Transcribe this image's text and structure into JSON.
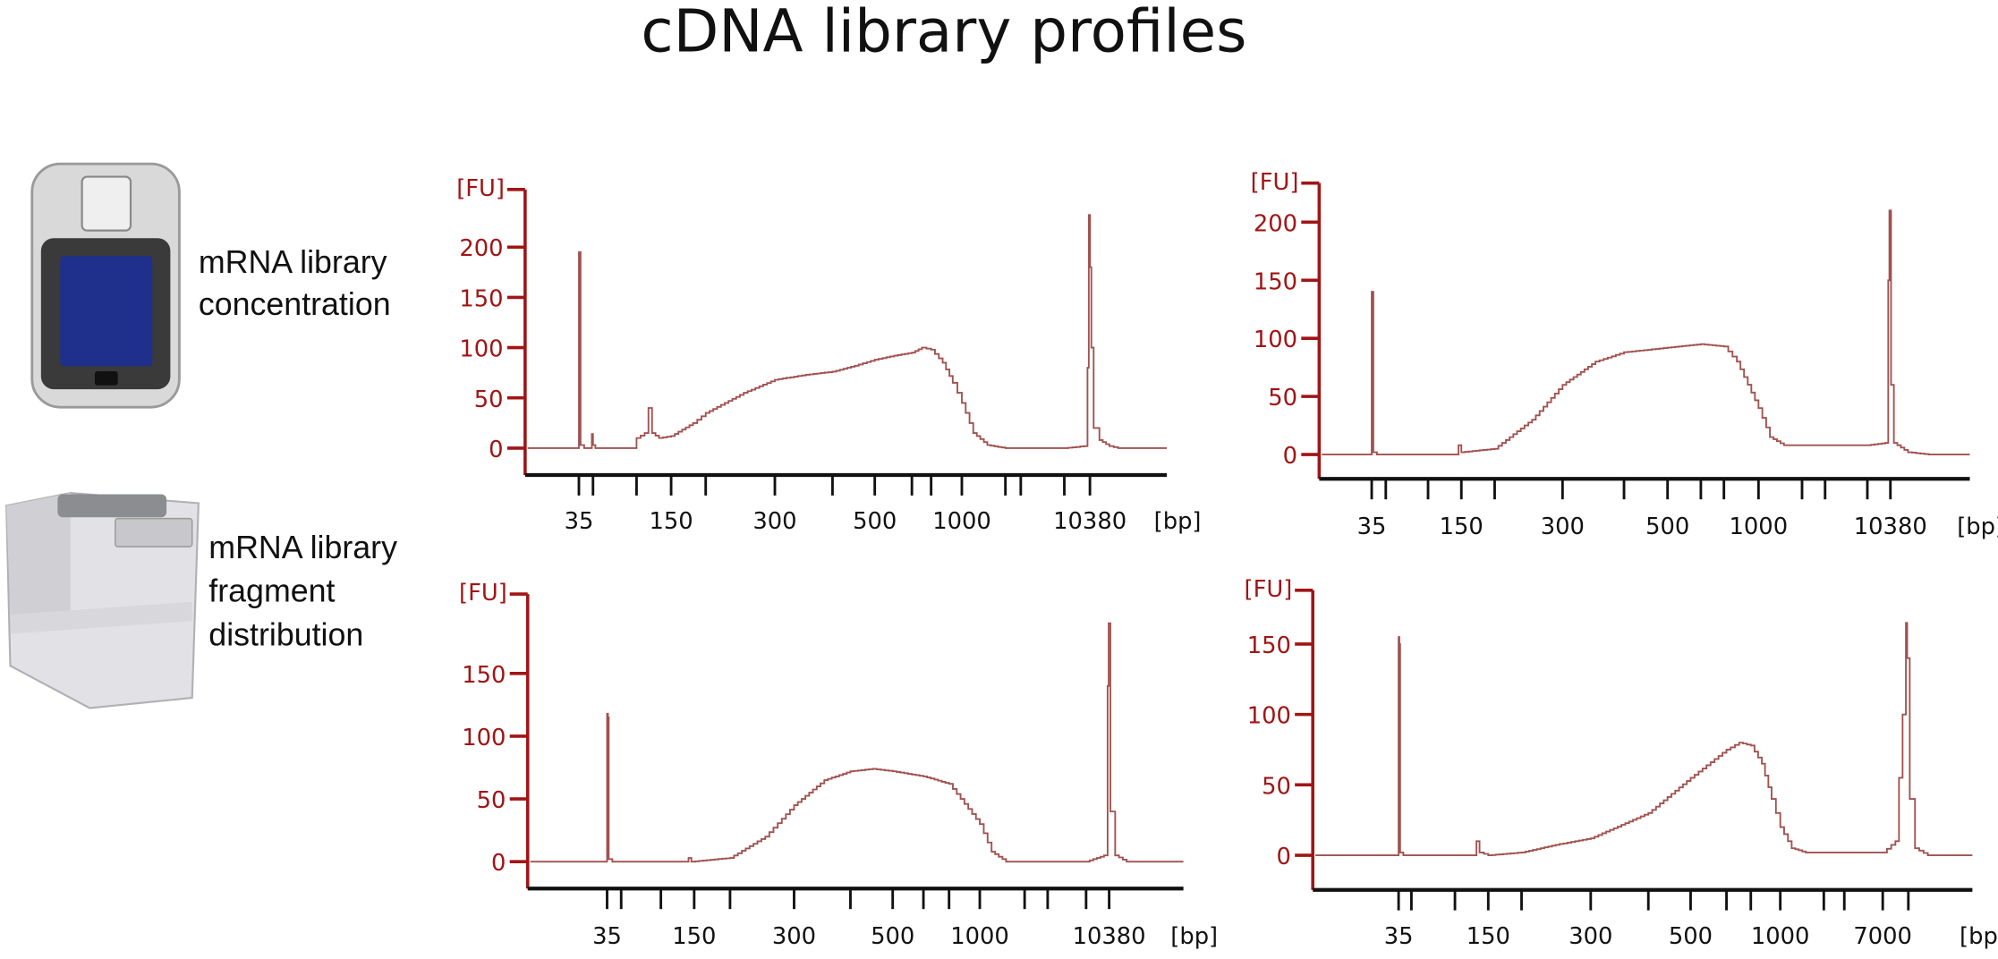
{
  "title": "cDNA library profiles",
  "labels": {
    "concentration": [
      "mRNA library",
      "concentration"
    ],
    "fragment": [
      "mRNA library",
      "fragment",
      "distribution"
    ]
  },
  "colors": {
    "axis_y": "#a01515",
    "axis_x": "#111111",
    "trace": "#a0524f",
    "device_screen": "#1e2f8c"
  },
  "icons": [
    "fluorometer-device-icon",
    "bioanalyzer-instrument-icon"
  ],
  "chart_data": [
    {
      "type": "line",
      "ylabel": "[FU]",
      "xlabel": "[bp]",
      "yticks": [
        0,
        50,
        100,
        150,
        200
      ],
      "ylim": [
        0,
        240
      ],
      "ladder_bp": [
        35,
        50,
        100,
        150,
        200,
        300,
        400,
        500,
        600,
        700,
        1000,
        2000,
        3000,
        7000,
        10380
      ],
      "xtick_labels": [
        "35",
        "150",
        "300",
        "500",
        "1000",
        "10380"
      ],
      "series": [
        {
          "points": [
            [
              34,
              0
            ],
            [
              35,
              195
            ],
            [
              35.8,
              195
            ],
            [
              36.5,
              3
            ],
            [
              40,
              0
            ],
            [
              47,
              0
            ],
            [
              48.5,
              14
            ],
            [
              50,
              3
            ],
            [
              52,
              0
            ],
            [
              95,
              0
            ],
            [
              100,
              10
            ],
            [
              110,
              15
            ],
            [
              115,
              40
            ],
            [
              120,
              15
            ],
            [
              130,
              10
            ],
            [
              150,
              12
            ],
            [
              180,
              25
            ],
            [
              200,
              35
            ],
            [
              250,
              55
            ],
            [
              300,
              68
            ],
            [
              350,
              73
            ],
            [
              400,
              76
            ],
            [
              450,
              82
            ],
            [
              500,
              88
            ],
            [
              550,
              92
            ],
            [
              600,
              95
            ],
            [
              650,
              100
            ],
            [
              700,
              98
            ],
            [
              800,
              85
            ],
            [
              900,
              65
            ],
            [
              1000,
              45
            ],
            [
              1200,
              15
            ],
            [
              1500,
              3
            ],
            [
              2000,
              0
            ],
            [
              7000,
              0
            ],
            [
              9500,
              2
            ],
            [
              10000,
              80
            ],
            [
              10200,
              232
            ],
            [
              10400,
              180
            ],
            [
              10600,
              100
            ],
            [
              11000,
              20
            ],
            [
              12000,
              8
            ],
            [
              14000,
              2
            ],
            [
              16000,
              0
            ]
          ]
        }
      ]
    },
    {
      "type": "line",
      "ylabel": "[FU]",
      "xlabel": "[bp]",
      "yticks": [
        0,
        50,
        100,
        150,
        200
      ],
      "ylim": [
        0,
        230
      ],
      "ladder_bp": [
        35,
        50,
        100,
        150,
        200,
        300,
        400,
        500,
        600,
        700,
        1000,
        2000,
        3000,
        7000,
        10380
      ],
      "xtick_labels": [
        "35",
        "150",
        "300",
        "500",
        "1000",
        "10380"
      ],
      "series": [
        {
          "points": [
            [
              34,
              0
            ],
            [
              35,
              140
            ],
            [
              35.8,
              140
            ],
            [
              36.5,
              2
            ],
            [
              40,
              0
            ],
            [
              140,
              0
            ],
            [
              145,
              8
            ],
            [
              150,
              2
            ],
            [
              200,
              5
            ],
            [
              250,
              30
            ],
            [
              300,
              60
            ],
            [
              350,
              80
            ],
            [
              400,
              88
            ],
            [
              500,
              92
            ],
            [
              600,
              95
            ],
            [
              700,
              93
            ],
            [
              800,
              80
            ],
            [
              1000,
              40
            ],
            [
              1200,
              15
            ],
            [
              1500,
              8
            ],
            [
              2000,
              8
            ],
            [
              7000,
              8
            ],
            [
              9500,
              10
            ],
            [
              10000,
              150
            ],
            [
              10200,
              210
            ],
            [
              10500,
              60
            ],
            [
              11000,
              10
            ],
            [
              14000,
              2
            ],
            [
              20000,
              0
            ]
          ]
        }
      ]
    },
    {
      "type": "line",
      "ylabel": "[FU]",
      "xlabel": "[bp]",
      "yticks": [
        0,
        50,
        100,
        150
      ],
      "ylim": [
        0,
        200
      ],
      "ladder_bp": [
        35,
        50,
        100,
        150,
        200,
        300,
        400,
        500,
        600,
        700,
        1000,
        2000,
        3000,
        7000,
        10380
      ],
      "xtick_labels": [
        "35",
        "150",
        "300",
        "500",
        "1000",
        "10380"
      ],
      "series": [
        {
          "points": [
            [
              34,
              0
            ],
            [
              35,
              118
            ],
            [
              35.8,
              115
            ],
            [
              36.5,
              2
            ],
            [
              40,
              0
            ],
            [
              135,
              0
            ],
            [
              140,
              3
            ],
            [
              145,
              0
            ],
            [
              200,
              3
            ],
            [
              250,
              20
            ],
            [
              300,
              45
            ],
            [
              350,
              65
            ],
            [
              400,
              72
            ],
            [
              450,
              74
            ],
            [
              500,
              72
            ],
            [
              600,
              68
            ],
            [
              700,
              62
            ],
            [
              800,
              50
            ],
            [
              1000,
              30
            ],
            [
              1200,
              8
            ],
            [
              1500,
              0
            ],
            [
              7000,
              0
            ],
            [
              9500,
              5
            ],
            [
              10100,
              140
            ],
            [
              10300,
              190
            ],
            [
              10600,
              40
            ],
            [
              11500,
              5
            ],
            [
              14000,
              0
            ]
          ]
        }
      ]
    },
    {
      "type": "line",
      "ylabel": "[FU]",
      "xlabel": "[bp]",
      "yticks": [
        0,
        50,
        100,
        150
      ],
      "ylim": [
        0,
        180
      ],
      "ladder_bp": [
        35,
        50,
        100,
        150,
        200,
        300,
        400,
        500,
        600,
        700,
        1000,
        2000,
        3000,
        7000,
        10380
      ],
      "xtick_labels": [
        "35",
        "150",
        "300",
        "500",
        "1000",
        "7000"
      ],
      "series": [
        {
          "points": [
            [
              34,
              0
            ],
            [
              35,
              155
            ],
            [
              35.8,
              150
            ],
            [
              36.5,
              2
            ],
            [
              40,
              0
            ],
            [
              125,
              0
            ],
            [
              130,
              10
            ],
            [
              135,
              2
            ],
            [
              150,
              0
            ],
            [
              200,
              2
            ],
            [
              250,
              8
            ],
            [
              300,
              12
            ],
            [
              400,
              30
            ],
            [
              500,
              55
            ],
            [
              600,
              75
            ],
            [
              650,
              80
            ],
            [
              700,
              78
            ],
            [
              800,
              65
            ],
            [
              900,
              40
            ],
            [
              1000,
              20
            ],
            [
              1200,
              5
            ],
            [
              1500,
              2
            ],
            [
              2000,
              2
            ],
            [
              7000,
              2
            ],
            [
              8500,
              10
            ],
            [
              9500,
              100
            ],
            [
              10000,
              165
            ],
            [
              10200,
              140
            ],
            [
              10600,
              40
            ],
            [
              11500,
              5
            ],
            [
              14000,
              0
            ]
          ]
        }
      ]
    }
  ]
}
